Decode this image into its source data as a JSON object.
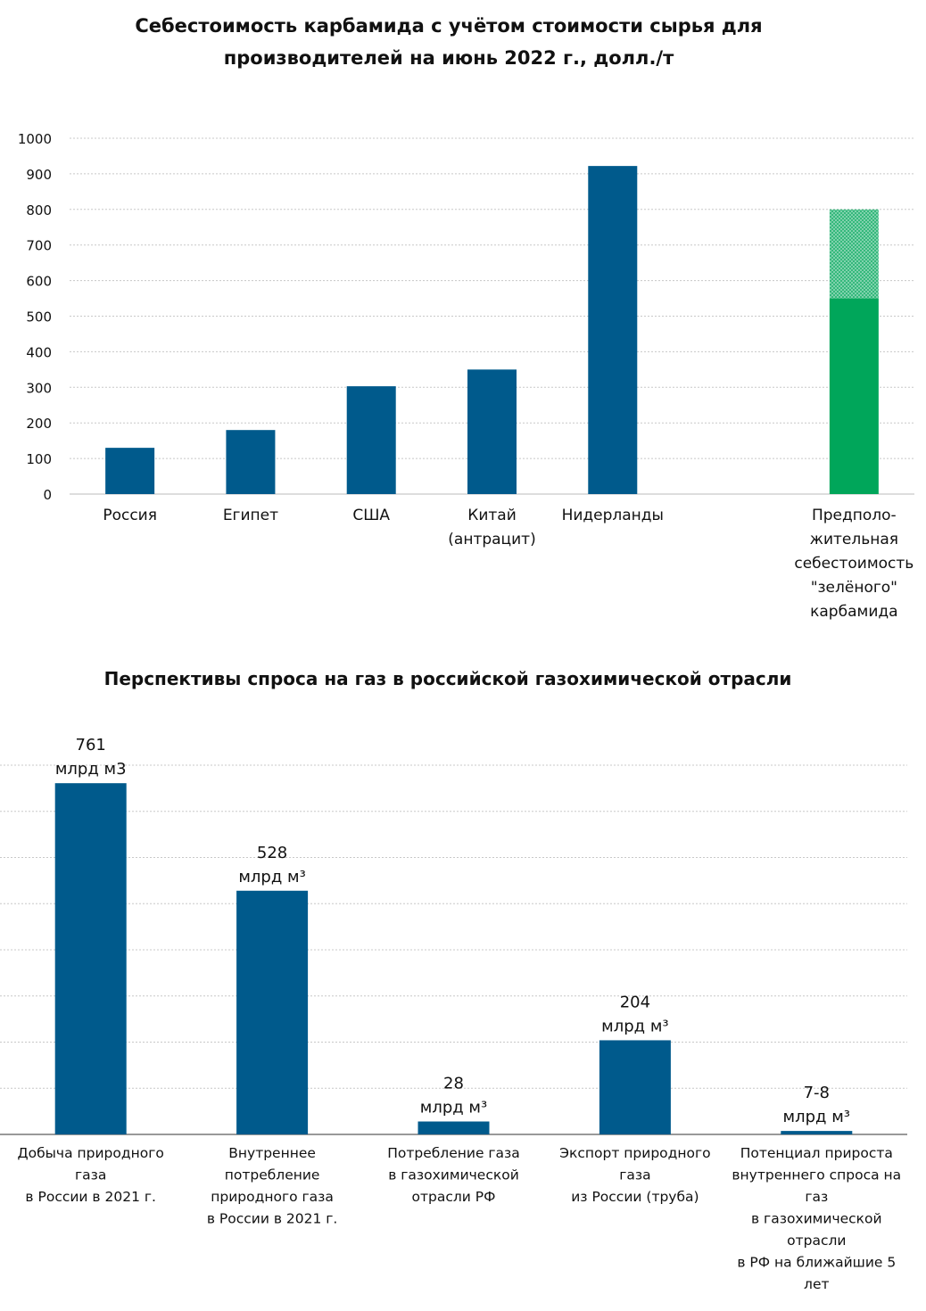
{
  "chart_data": [
    {
      "type": "bar",
      "title": "Себестоимость карбамида с учётом стоимости сырья для\nпроизводителей на июнь 2022 г., долл./т",
      "categories": [
        "Россия",
        "Египет",
        "США",
        "Китай\n(антрацит)",
        "Нидерланды",
        null,
        "Предполо-\nжительная\nсебестоимость\n\"зелёного\"\nкарбамида"
      ],
      "values": [
        130,
        180,
        303,
        350,
        922,
        null,
        550
      ],
      "upper_values": [
        null,
        null,
        null,
        null,
        null,
        null,
        250
      ],
      "colors": [
        "#005a8c",
        "#005a8c",
        "#005a8c",
        "#005a8c",
        "#005a8c",
        null,
        "#00a65a"
      ],
      "upper_color": "#00a65a",
      "upper_pattern": "dotted",
      "ylim": [
        0,
        1000
      ],
      "yticks": [
        0,
        100,
        200,
        300,
        400,
        500,
        600,
        700,
        800,
        900,
        1000
      ],
      "ytick_labels": true,
      "grid": true
    },
    {
      "type": "bar",
      "title": "Перспективы спроса на газ в российской газохимической отрасли",
      "categories": [
        "Добыча природного\nгаза\nв России в 2021 г.",
        "Внутреннее\nпотребление\nприродного газа\nв России в 2021 г.",
        "Потребление газа\nв газохимической\nотрасли РФ",
        "Экспорт природного\nгаза\nиз России (труба)",
        "Потенциал прироста\nвнутреннего спроса на\nгаз\nв газохимической\nотрасли\nв РФ на ближайшие 5\nлет"
      ],
      "values": [
        761,
        528,
        28,
        204,
        7.5
      ],
      "value_labels": [
        "761\nмлрд м3",
        "528\nмлрд м³",
        "28\nмлрд м³",
        "204\nмлрд м³",
        "7-8\nмлрд м³"
      ],
      "color": "#005a8c",
      "ylim": [
        0,
        800
      ],
      "yticks": [
        0,
        100,
        200,
        300,
        400,
        500,
        600,
        700,
        800
      ],
      "ytick_labels": false,
      "grid": true
    }
  ]
}
